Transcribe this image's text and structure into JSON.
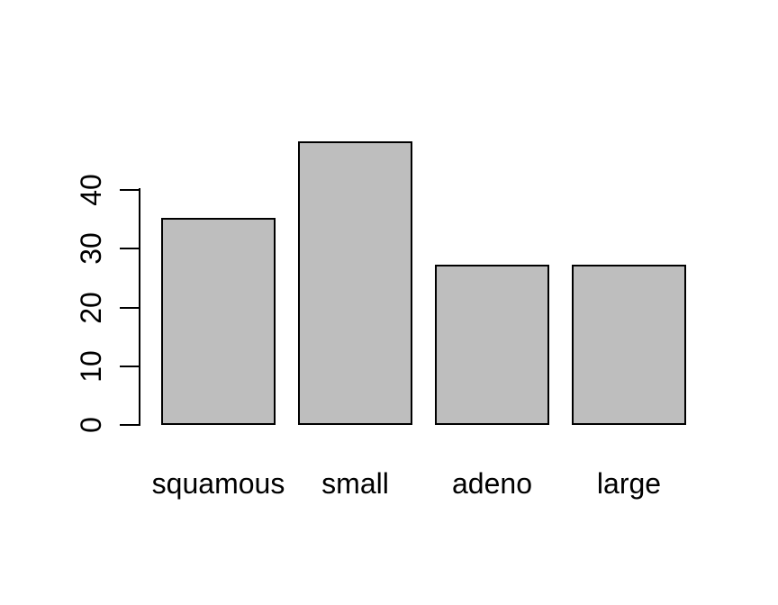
{
  "chart_data": {
    "type": "bar",
    "categories": [
      "squamous",
      "small",
      "adeno",
      "large"
    ],
    "values": [
      35,
      48,
      27,
      27
    ],
    "title": "",
    "xlabel": "",
    "ylabel": "",
    "yticks": [
      0,
      10,
      20,
      30,
      40
    ],
    "axis_range": [
      0,
      40
    ],
    "ylim": [
      0,
      48
    ],
    "grid": false,
    "legend": null,
    "colors": {
      "bar_fill": "#BEBEBE",
      "bar_border": "#000000",
      "axis": "#000000",
      "text": "#000000",
      "background": "#FFFFFF"
    }
  }
}
